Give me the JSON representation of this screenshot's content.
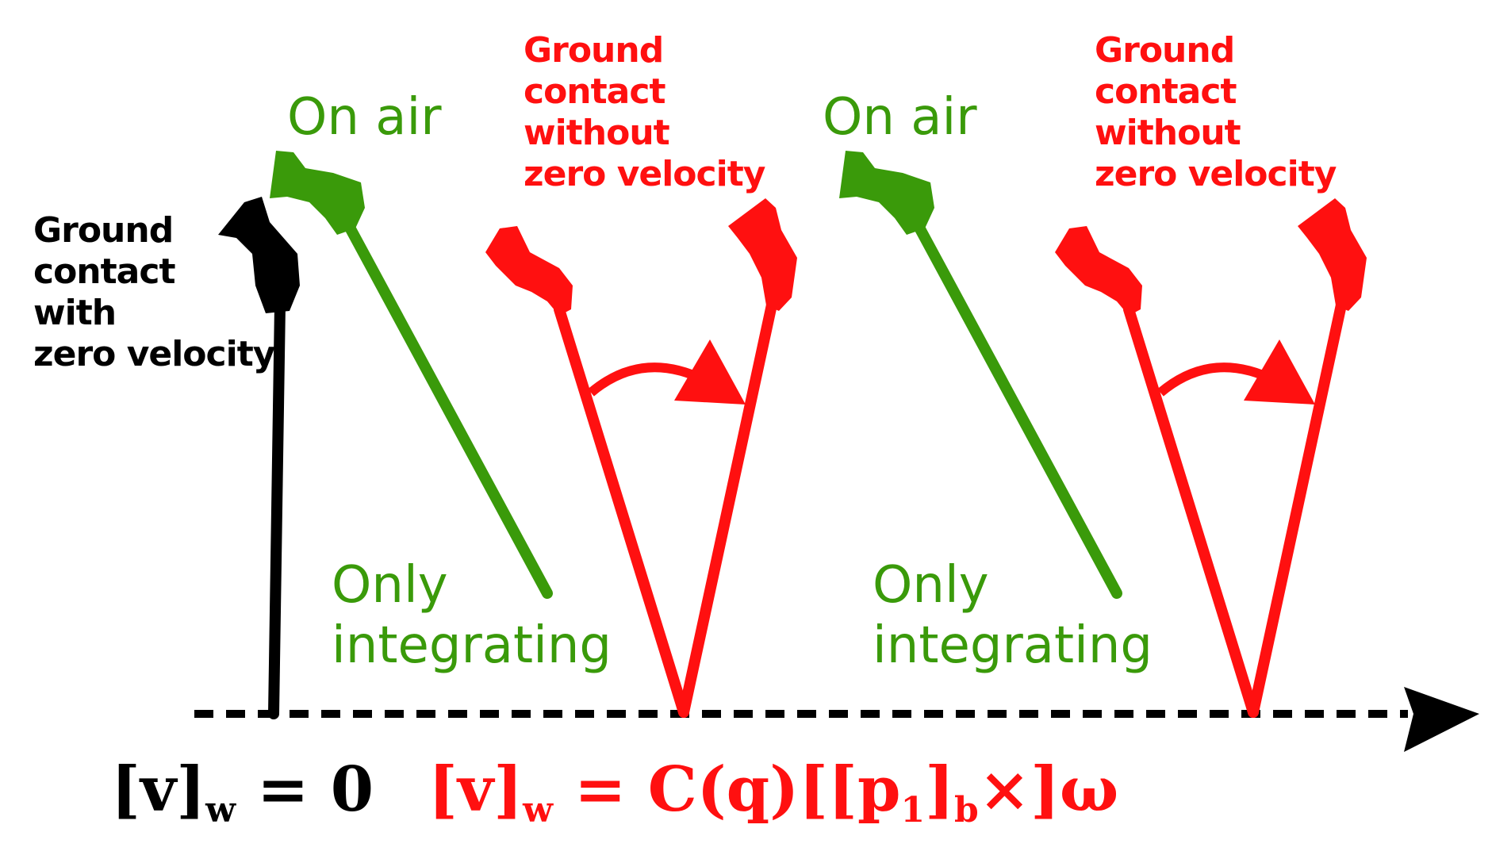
{
  "colors": {
    "black": "#000000",
    "green": "#3a9a0a",
    "red": "#ff1010"
  },
  "labels": {
    "ground_zero_lines": [
      "Ground",
      "contact",
      "with",
      "zero velocity"
    ],
    "on_air_1": "On air",
    "on_air_2": "On air",
    "ground_nonzero_1_lines": [
      "Ground",
      "contact",
      "without",
      "zero velocity"
    ],
    "ground_nonzero_2_lines": [
      "Ground",
      "contact",
      "without",
      "zero velocity"
    ],
    "only_integrating_1_lines": [
      "Only",
      "integrating"
    ],
    "only_integrating_2_lines": [
      "Only",
      "integrating"
    ]
  },
  "equations": {
    "zero_left": "[v]",
    "zero_sub": "w",
    "zero_right": " = 0",
    "red_left": "[v]",
    "red_sub": "w",
    "red_mid": " = C(q)[[p",
    "red_sub1": "1",
    "red_mid2": "]",
    "red_sub2": "b",
    "red_right": "×]ω"
  }
}
